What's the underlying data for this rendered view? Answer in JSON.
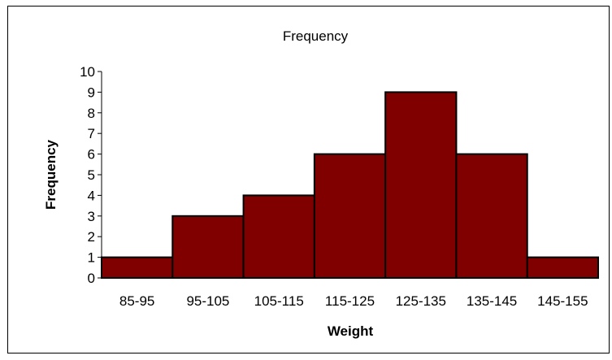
{
  "chart_data": {
    "type": "bar",
    "title": "Frequency",
    "xlabel": "Weight",
    "ylabel": "Frequency",
    "categories": [
      "85-95",
      "95-105",
      "105-115",
      "115-125",
      "125-135",
      "135-145",
      "145-155"
    ],
    "series": [
      {
        "values": [
          1,
          3,
          4,
          6,
          9,
          6,
          1
        ]
      }
    ],
    "ylim": [
      0,
      10
    ],
    "yticks": [
      0,
      1,
      2,
      3,
      4,
      5,
      6,
      7,
      8,
      9,
      10
    ],
    "grid": false,
    "legend": "none",
    "bar_color": "#800000",
    "bar_edge_color": "#000000"
  }
}
